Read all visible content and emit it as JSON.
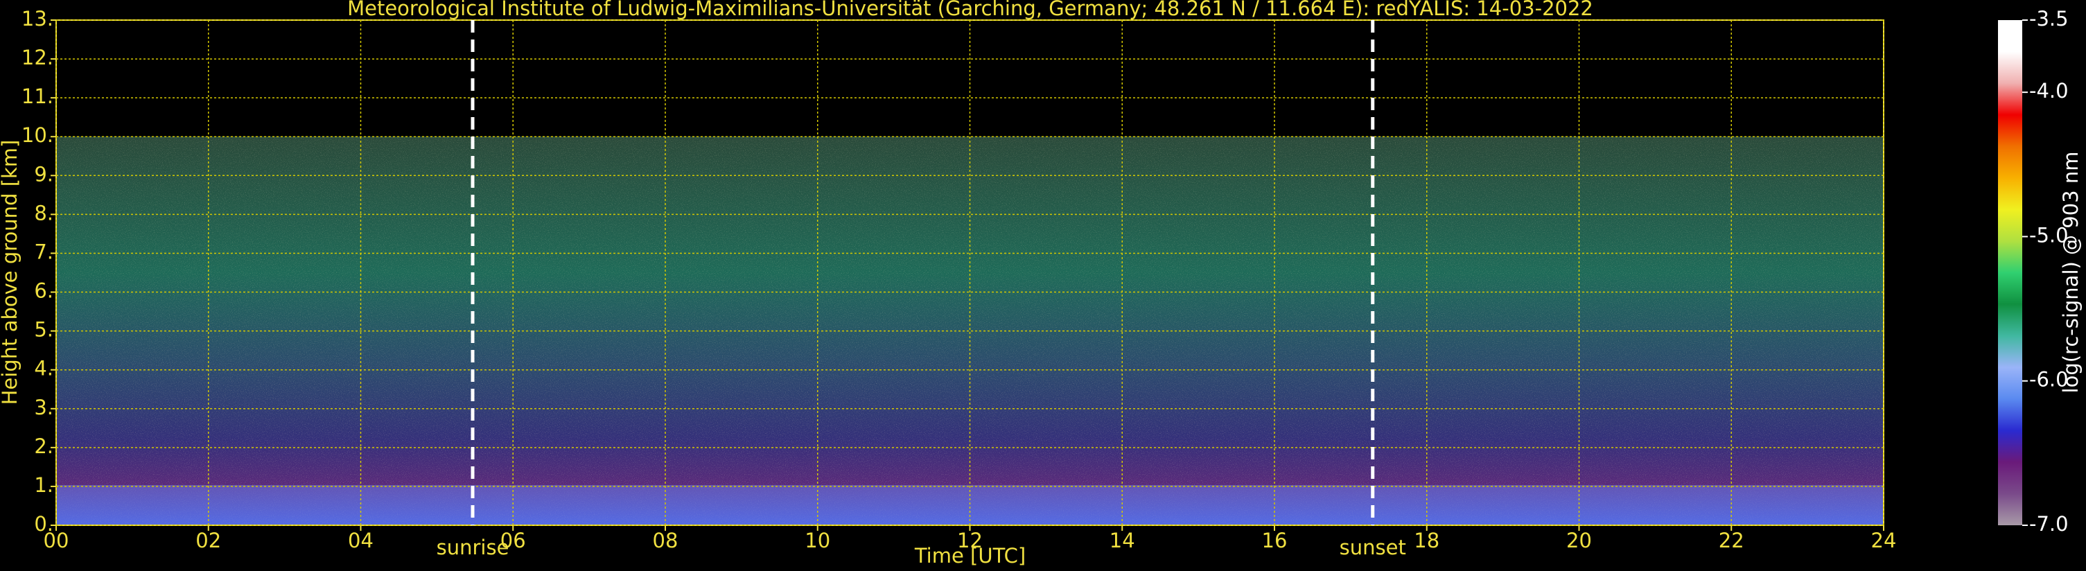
{
  "chart_data": {
    "type": "heatmap",
    "title": "Meteorological Institute of Ludwig-Maximilians-Universität (Garching, Germany; 48.261 N / 11.664 E):    redYALIS: 14-03-2022",
    "x_label": "Time [UTC]",
    "y_label": "Height above ground [km]",
    "xlim": [
      0,
      24
    ],
    "xticks": [
      {
        "value": 0,
        "label": "00"
      },
      {
        "value": 2,
        "label": "02"
      },
      {
        "value": 4,
        "label": "04"
      },
      {
        "value": 6,
        "label": "06"
      },
      {
        "value": 8,
        "label": "08"
      },
      10,
      12,
      14,
      16,
      18,
      20,
      22,
      24
    ],
    "ylim": [
      0,
      13
    ],
    "yticks": [
      {
        "value": 0,
        "label": "0."
      },
      {
        "value": 1,
        "label": "1."
      },
      {
        "value": 2,
        "label": "2."
      },
      {
        "value": 3,
        "label": "3."
      },
      {
        "value": 4,
        "label": "4."
      },
      {
        "value": 5,
        "label": "5."
      },
      {
        "value": 6,
        "label": "6."
      },
      {
        "value": 7,
        "label": "7."
      },
      {
        "value": 8,
        "label": "8."
      },
      {
        "value": 9,
        "label": "9."
      },
      {
        "value": 10,
        "label": "10."
      },
      {
        "value": 11,
        "label": "11."
      },
      {
        "value": 12,
        "label": "12."
      },
      {
        "value": 13,
        "label": "13."
      }
    ],
    "grid": true,
    "grid_color": "#d4c800",
    "annotations": [
      {
        "text": "sunrise",
        "x": 5.47
      },
      {
        "text": "sunset",
        "x": 17.29
      }
    ],
    "colorbar": {
      "label": "log(rc-signal) @ 903 nm",
      "lim": [
        -7.0,
        -3.5
      ],
      "ticks": [
        {
          "value": -3.5,
          "label": "-3.5"
        },
        {
          "value": -4.0,
          "label": "-4.0"
        },
        {
          "value": -5.0,
          "label": "-5.0"
        },
        {
          "value": -6.0,
          "label": "-6.0"
        },
        {
          "value": -7.0,
          "label": "-7.0"
        }
      ],
      "colors": [
        "#a89aa8",
        "#7a4a8a",
        "#6a1a7a",
        "#2a2ad0",
        "#5a8af0",
        "#9ab4f8",
        "#40b8a0",
        "#109040",
        "#30d070",
        "#b0e040",
        "#f0f020",
        "#f8b000",
        "#f07000",
        "#f00000",
        "#f0b0b0",
        "#ffffff",
        "#ffffff"
      ]
    }
  }
}
